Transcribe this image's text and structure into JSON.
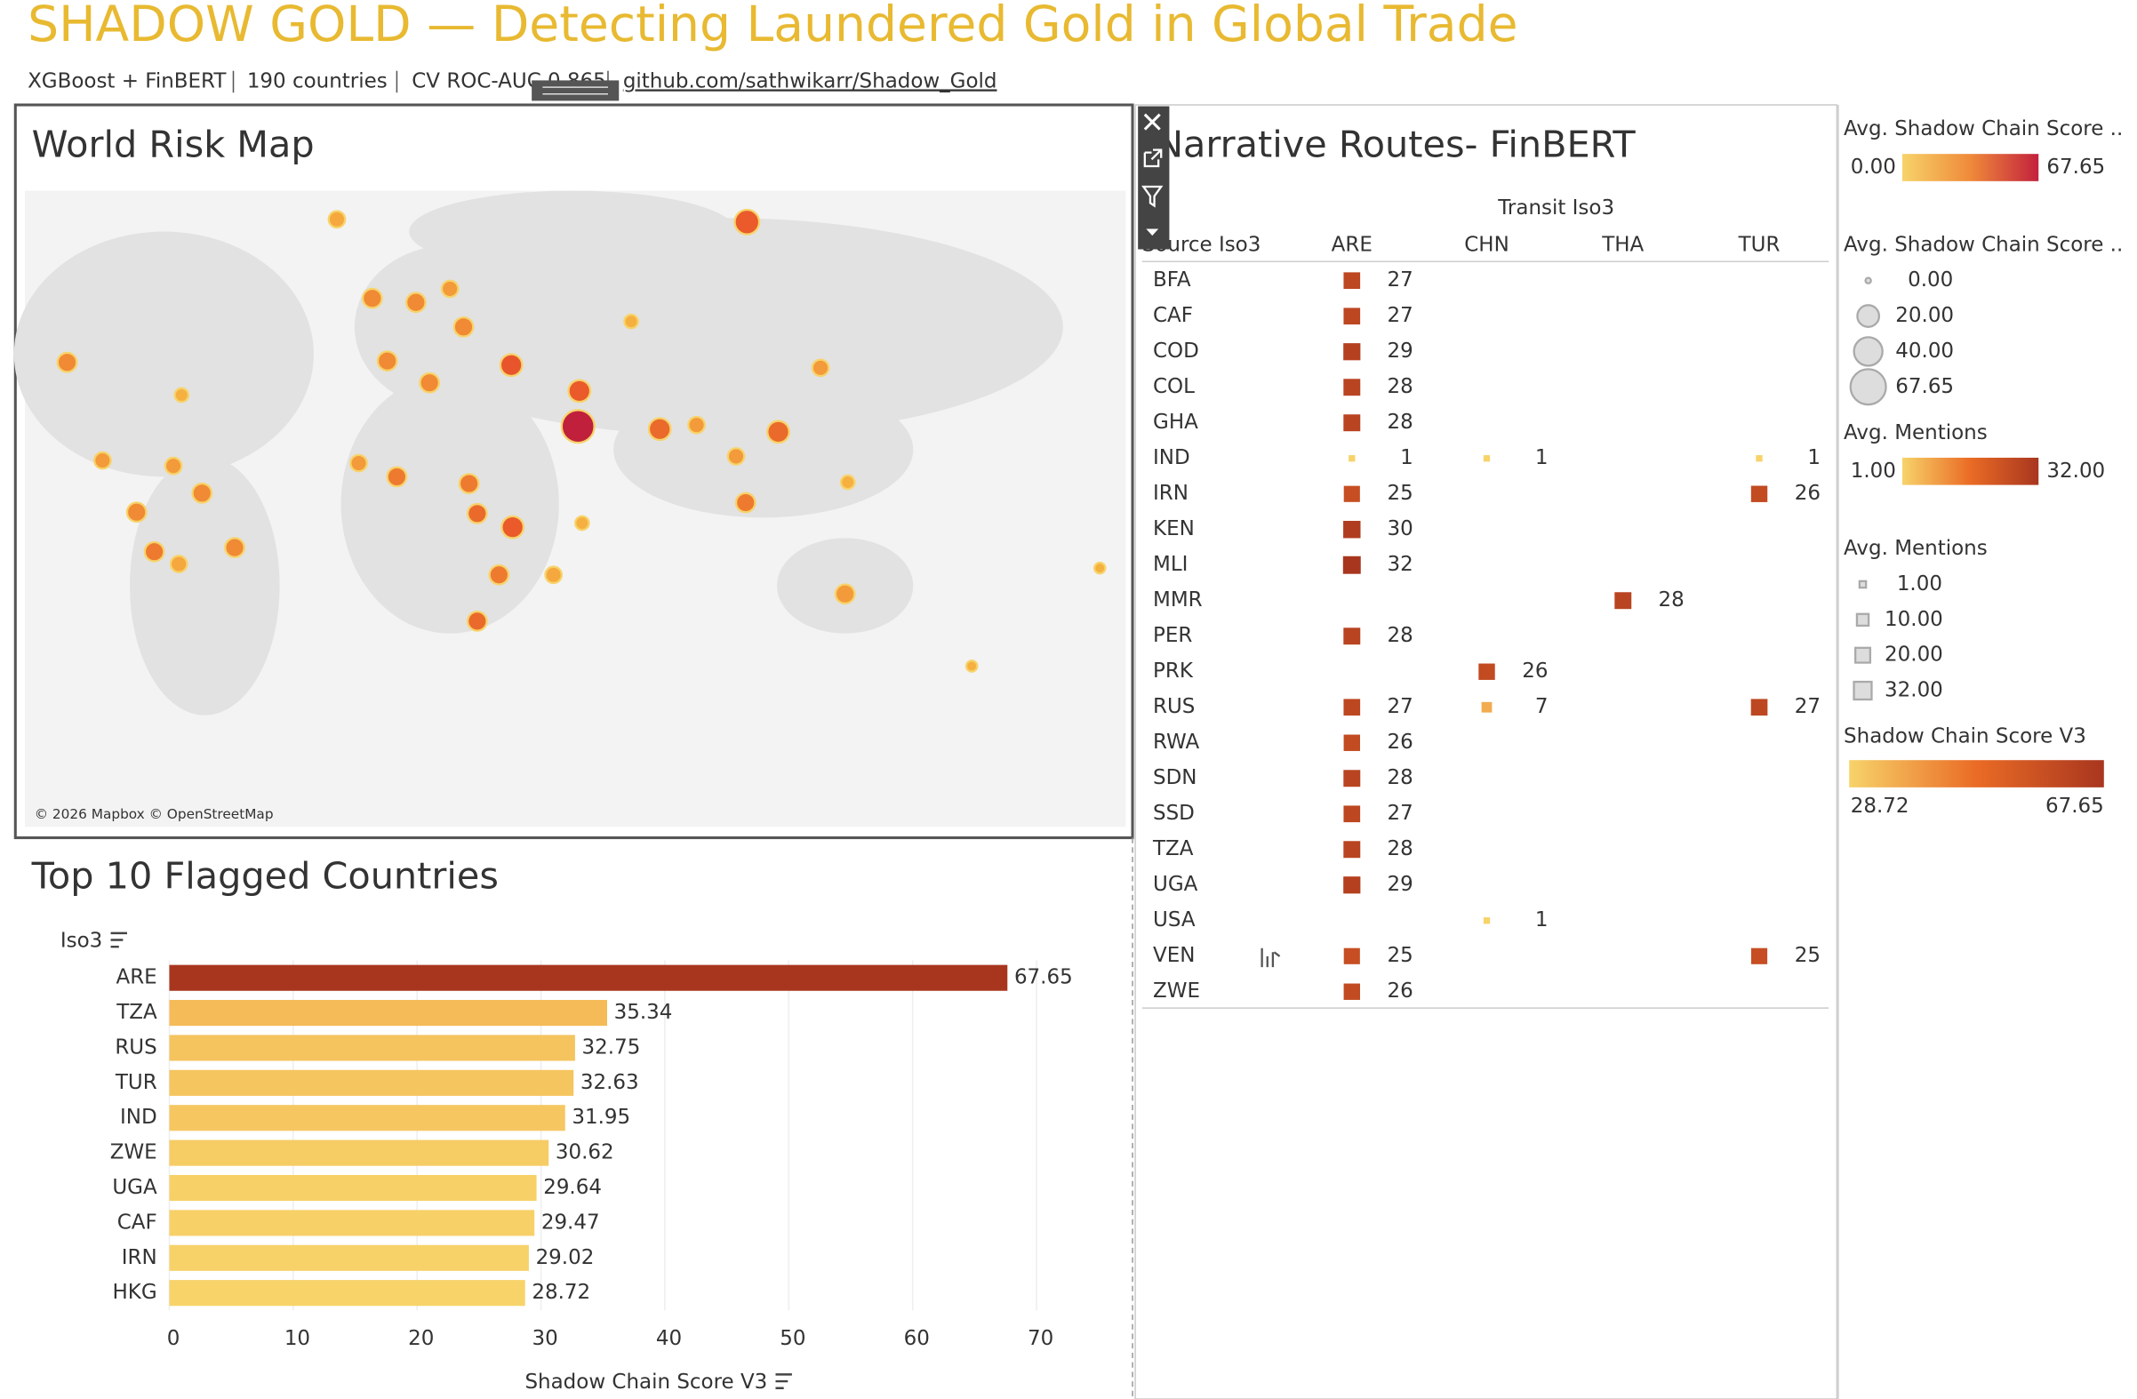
{
  "header": {
    "title": "SHADOW GOLD — Detecting Laundered Gold in Global Trade",
    "subtitle": [
      "XGBoost + FinBERT",
      "190 countries",
      "CV ROC-AUC 0.865"
    ],
    "link": "github.com/sathwikarr/Shadow_Gold"
  },
  "map": {
    "title": "World Risk Map",
    "attribution": "© 2026 Mapbox © OpenStreetMap"
  },
  "routes": {
    "title": "Narrative Routes- FinBERT",
    "column_group": "Transit Iso3",
    "row_header": "Source Iso3",
    "columns": [
      "ARE",
      "CHN",
      "THA",
      "TUR"
    ],
    "rows": [
      {
        "source": "BFA",
        "values": [
          27,
          null,
          null,
          null
        ]
      },
      {
        "source": "CAF",
        "values": [
          27,
          null,
          null,
          null
        ]
      },
      {
        "source": "COD",
        "values": [
          29,
          null,
          null,
          null
        ]
      },
      {
        "source": "COL",
        "values": [
          28,
          null,
          null,
          null
        ]
      },
      {
        "source": "GHA",
        "values": [
          28,
          null,
          null,
          null
        ]
      },
      {
        "source": "IND",
        "values": [
          1,
          1,
          null,
          1
        ]
      },
      {
        "source": "IRN",
        "values": [
          25,
          null,
          null,
          26
        ]
      },
      {
        "source": "KEN",
        "values": [
          30,
          null,
          null,
          null
        ]
      },
      {
        "source": "MLI",
        "values": [
          32,
          null,
          null,
          null
        ]
      },
      {
        "source": "MMR",
        "values": [
          null,
          null,
          28,
          null
        ]
      },
      {
        "source": "PER",
        "values": [
          28,
          null,
          null,
          null
        ]
      },
      {
        "source": "PRK",
        "values": [
          null,
          26,
          null,
          null
        ]
      },
      {
        "source": "RUS",
        "values": [
          27,
          7,
          null,
          27
        ]
      },
      {
        "source": "RWA",
        "values": [
          26,
          null,
          null,
          null
        ]
      },
      {
        "source": "SDN",
        "values": [
          28,
          null,
          null,
          null
        ]
      },
      {
        "source": "SSD",
        "values": [
          27,
          null,
          null,
          null
        ]
      },
      {
        "source": "TZA",
        "values": [
          28,
          null,
          null,
          null
        ]
      },
      {
        "source": "UGA",
        "values": [
          29,
          null,
          null,
          null
        ]
      },
      {
        "source": "USA",
        "values": [
          null,
          1,
          null,
          null
        ]
      },
      {
        "source": "VEN",
        "values": [
          25,
          null,
          null,
          25
        ]
      },
      {
        "source": "ZWE",
        "values": [
          26,
          null,
          null,
          null
        ]
      }
    ]
  },
  "legends": {
    "score_color": {
      "title": "Avg. Shadow Chain Score ..",
      "range": [
        {
          "value": 0,
          "label": "0.00"
        },
        {
          "value": 67.65,
          "label": "67.65"
        }
      ]
    },
    "score_size": {
      "title": "Avg. Shadow Chain Score ..",
      "items": [
        {
          "value": 0,
          "label": "0.00"
        },
        {
          "value": 20,
          "label": "20.00"
        },
        {
          "value": 40,
          "label": "40.00"
        },
        {
          "value": 67.65,
          "label": "67.65"
        }
      ]
    },
    "mentions_color": {
      "title": "Avg. Mentions",
      "range": [
        {
          "value": 1,
          "label": "1.00"
        },
        {
          "value": 32,
          "label": "32.00"
        }
      ]
    },
    "mentions_size": {
      "title": "Avg. Mentions",
      "items": [
        {
          "value": 1,
          "label": "1.00"
        },
        {
          "value": 10,
          "label": "10.00"
        },
        {
          "value": 20,
          "label": "20.00"
        },
        {
          "value": 32,
          "label": "32.00"
        }
      ]
    },
    "bar_color": {
      "title": "Shadow Chain Score V3",
      "range": [
        {
          "value": 28.72,
          "label": "28.72"
        },
        {
          "value": 67.65,
          "label": "67.65"
        }
      ]
    }
  },
  "chart_data": {
    "type": "bar",
    "title": "Top 10 Flagged Countries",
    "y_label": "Iso3",
    "x_label": "Shadow Chain Score V3",
    "categories": [
      "ARE",
      "TZA",
      "RUS",
      "TUR",
      "IND",
      "ZWE",
      "UGA",
      "CAF",
      "IRN",
      "HKG"
    ],
    "values": [
      67.65,
      35.34,
      32.75,
      32.63,
      31.95,
      30.62,
      29.64,
      29.47,
      29.02,
      28.72
    ],
    "xlim": [
      0,
      75
    ],
    "xticks": [
      0,
      10,
      20,
      30,
      40,
      50,
      60,
      70
    ],
    "grid": true
  }
}
